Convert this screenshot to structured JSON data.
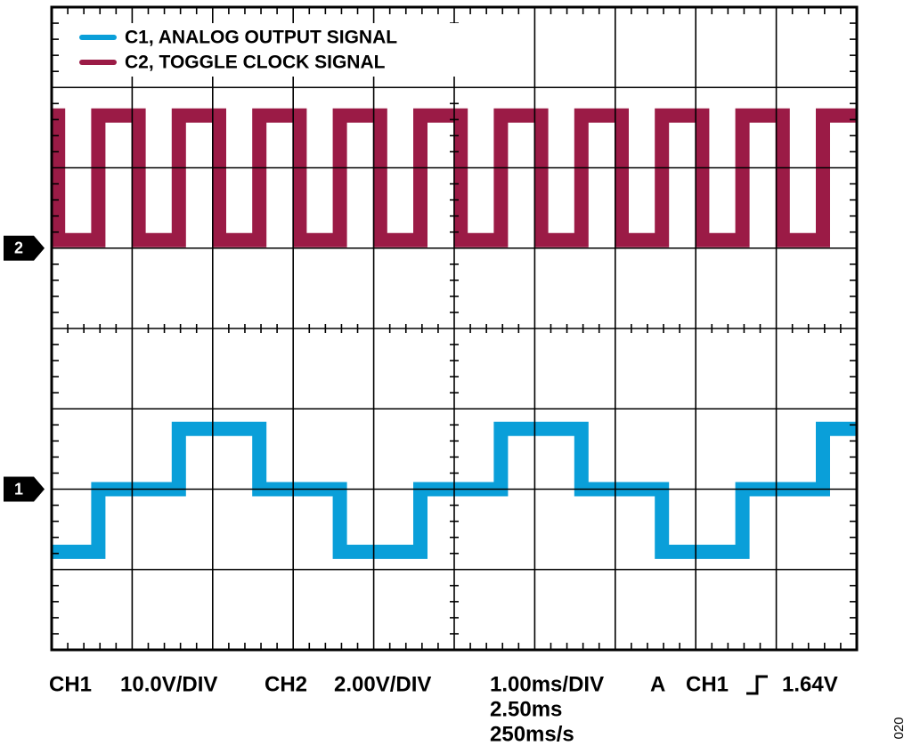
{
  "chart_data": {
    "type": "line",
    "xlim": [
      0,
      10
    ],
    "ylim": [
      0,
      8
    ],
    "xticks": [
      0,
      1,
      2,
      3,
      4,
      5,
      6,
      7,
      8,
      9,
      10
    ],
    "yticks": [
      0,
      1,
      2,
      3,
      4,
      5,
      6,
      7,
      8
    ],
    "grid": true,
    "legend": "top-left",
    "series": [
      {
        "name": "C1, ANALOG OUTPUT SIGNAL",
        "color": "#0a9fd9",
        "x": [
          0,
          0.58,
          0.58,
          1.58,
          1.58,
          2.58,
          2.58,
          3.58,
          3.58,
          4.58,
          4.58,
          5.58,
          5.58,
          6.58,
          6.58,
          7.58,
          7.58,
          8.58,
          8.58,
          9.58,
          9.58,
          10
        ],
        "values": [
          1.22,
          1.22,
          2,
          2,
          2.75,
          2.75,
          2,
          2,
          1.22,
          1.22,
          2,
          2,
          2.75,
          2.75,
          2,
          2,
          1.22,
          1.22,
          2,
          2,
          2.75,
          2.75
        ]
      },
      {
        "name": "C2, TOGGLE CLOCK SIGNAL",
        "color": "#9b1b46",
        "x": [
          0,
          0.08,
          0.08,
          0.58,
          0.58,
          1.08,
          1.08,
          1.58,
          1.58,
          2.08,
          2.08,
          2.58,
          2.58,
          3.08,
          3.08,
          3.58,
          3.58,
          4.08,
          4.08,
          4.58,
          4.58,
          5.08,
          5.08,
          5.58,
          5.58,
          6.08,
          6.08,
          6.58,
          6.58,
          7.08,
          7.08,
          7.58,
          7.58,
          8.08,
          8.08,
          8.58,
          8.58,
          9.08,
          9.08,
          9.58,
          9.58,
          10
        ],
        "values": [
          6.65,
          6.65,
          5.1,
          5.1,
          6.65,
          6.65,
          5.1,
          5.1,
          6.65,
          6.65,
          5.1,
          5.1,
          6.65,
          6.65,
          5.1,
          5.1,
          6.65,
          6.65,
          5.1,
          5.1,
          6.65,
          6.65,
          5.1,
          5.1,
          6.65,
          6.65,
          5.1,
          5.1,
          6.65,
          6.65,
          5.1,
          5.1,
          6.65,
          6.65,
          5.1,
          5.1,
          6.65,
          6.65,
          5.1,
          5.1,
          6.65,
          6.65
        ]
      }
    ],
    "channel_markers": [
      {
        "label": "2",
        "level": 5
      },
      {
        "label": "1",
        "level": 2
      }
    ],
    "settings": {
      "ch1_label": "CH1",
      "ch1_scale": "10.0V/DIV",
      "ch2_label": "CH2",
      "ch2_scale": "2.00V/DIV",
      "timebase": "1.00ms/DIV",
      "trigger_mode": "A",
      "trigger_source": "CH1",
      "trigger_level": "1.64V",
      "delay": "2.50ms",
      "sample_rate": "250ms/s"
    },
    "figure_number": "020"
  }
}
